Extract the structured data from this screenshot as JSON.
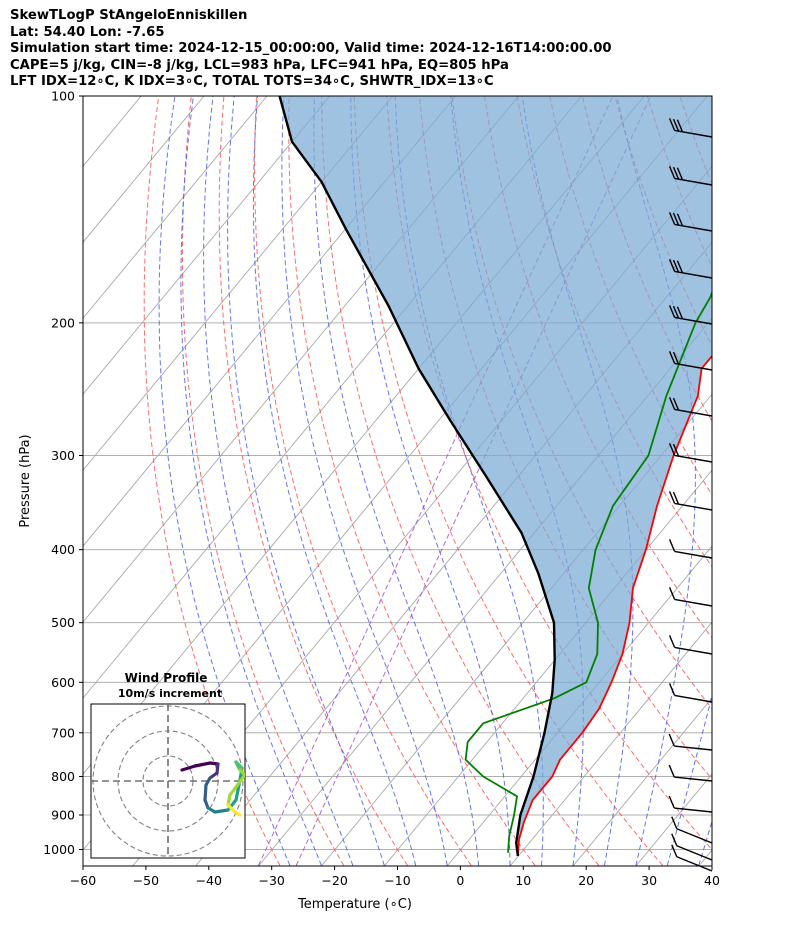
{
  "header": {
    "line1": "SkewTLogP StAngeloEnniskillen",
    "line2": "Lat: 54.40   Lon: -7.65",
    "line3": "Simulation start time: 2024-12-15_00:00:00, Valid time: 2024-12-16T14:00:00.00",
    "line4": "CAPE=5 j/kg, CIN=-8 j/kg, LCL=983 hPa, LFC=941 hPa, EQ=805 hPa",
    "line5": "LFT IDX=12∘C, K IDX=3∘C, TOTAL TOTS=34∘C, SHWTR_IDX=13∘C"
  },
  "chart_data": {
    "type": "skewt",
    "xlabel": "Temperature (∘C)",
    "ylabel": "Pressure (hPa)",
    "xlim": [
      -60,
      40
    ],
    "ylim": [
      1050,
      100
    ],
    "x_ticks": [
      "−60",
      "−50",
      "−40",
      "−30",
      "−20",
      "−10",
      "0",
      "10",
      "20",
      "30",
      "40"
    ],
    "y_ticks": [
      "100",
      "200",
      "300",
      "400",
      "500",
      "600",
      "700",
      "800",
      "900",
      "1000"
    ],
    "series": [
      {
        "name": "Temperature",
        "color": "#ff0000",
        "points": [
          [
            10,
            1020
          ],
          [
            8,
            970
          ],
          [
            6.5,
            920
          ],
          [
            5,
            860
          ],
          [
            5,
            800
          ],
          [
            4,
            760
          ],
          [
            4,
            700
          ],
          [
            3.5,
            650
          ],
          [
            2,
            600
          ],
          [
            0,
            550
          ],
          [
            -3,
            500
          ],
          [
            -7,
            450
          ],
          [
            -10,
            400
          ],
          [
            -14,
            350
          ],
          [
            -18,
            300
          ],
          [
            -22,
            250
          ],
          [
            -25,
            230
          ],
          [
            -25,
            210
          ],
          [
            -27,
            200
          ],
          [
            -30,
            180
          ],
          [
            -32,
            170
          ],
          [
            -32,
            160
          ],
          [
            -34,
            150
          ],
          [
            -36,
            140
          ],
          [
            -42,
            130
          ],
          [
            -49,
            120
          ],
          [
            -51,
            110
          ],
          [
            -51,
            100
          ]
        ]
      },
      {
        "name": "Dewpoint",
        "color": "#008000",
        "points": [
          [
            8,
            1010
          ],
          [
            6,
            960
          ],
          [
            4,
            900
          ],
          [
            2,
            850
          ],
          [
            -6,
            800
          ],
          [
            -11,
            760
          ],
          [
            -13,
            720
          ],
          [
            -13,
            680
          ],
          [
            -5,
            630
          ],
          [
            -2,
            600
          ],
          [
            -4,
            550
          ],
          [
            -8,
            500
          ],
          [
            -14,
            450
          ],
          [
            -18,
            400
          ],
          [
            -21,
            350
          ],
          [
            -22,
            300
          ],
          [
            -27,
            250
          ],
          [
            -32,
            200
          ],
          [
            -33,
            185
          ],
          [
            -35,
            170
          ],
          [
            -38,
            150
          ],
          [
            -43,
            130
          ],
          [
            -50,
            115
          ],
          [
            -55,
            100
          ]
        ]
      },
      {
        "name": "Parcel",
        "color": "#000000",
        "points": [
          [
            10,
            1020
          ],
          [
            8,
            980
          ],
          [
            5,
            900
          ],
          [
            2,
            800
          ],
          [
            -2,
            700
          ],
          [
            -6,
            620
          ],
          [
            -10,
            560
          ],
          [
            -15,
            500
          ],
          [
            -24,
            430
          ],
          [
            -32,
            380
          ],
          [
            -45,
            320
          ],
          [
            -58,
            270
          ],
          [
            -70,
            230
          ],
          [
            -83,
            190
          ],
          [
            -100,
            150
          ],
          [
            -110,
            130
          ],
          [
            -120,
            115
          ],
          [
            -128,
            100
          ]
        ]
      }
    ],
    "wind_profile": {
      "title": "Wind Profile",
      "subtitle": "10m/s increment"
    }
  }
}
